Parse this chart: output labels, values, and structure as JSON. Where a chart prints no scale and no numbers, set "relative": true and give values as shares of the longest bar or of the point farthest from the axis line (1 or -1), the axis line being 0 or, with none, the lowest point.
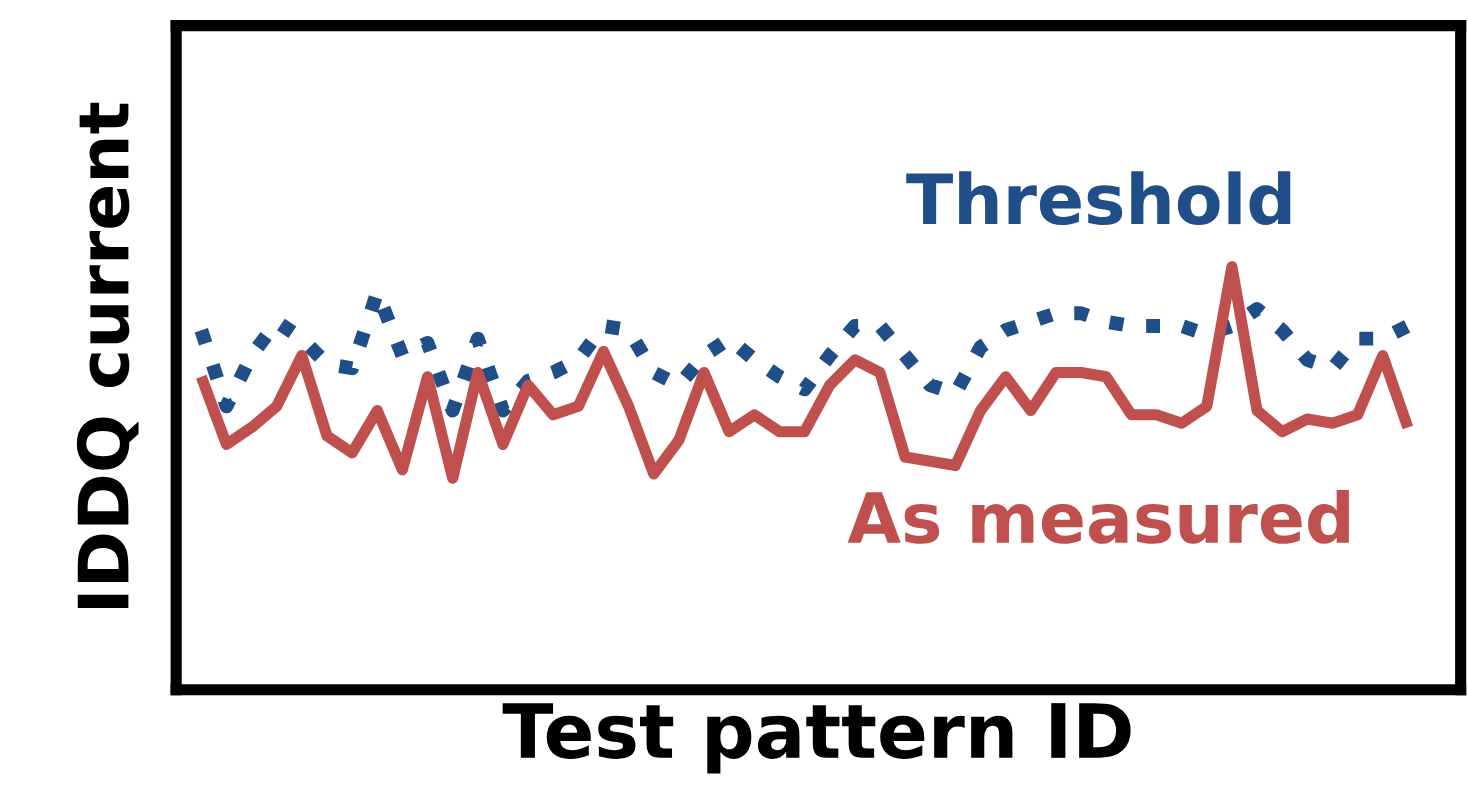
{
  "chart_data": {
    "type": "line",
    "relative": true,
    "xlabel": "Test pattern ID",
    "ylabel": "IDDQ current",
    "legend": false,
    "categories": [
      null,
      null,
      null,
      null,
      null,
      null,
      null,
      null,
      null,
      null,
      null,
      null,
      null,
      null,
      null,
      null,
      null,
      null,
      null,
      null,
      null,
      null,
      null,
      null,
      null,
      null,
      null,
      null,
      null,
      null,
      null,
      null,
      null,
      null,
      null,
      null,
      null,
      null,
      null,
      null,
      null,
      null,
      null,
      null,
      null,
      null,
      null,
      null,
      null
    ],
    "series": [
      {
        "name": "Threshold",
        "color": "#1f4e89",
        "line_style": "dotted",
        "values": [
          0.85,
          0.67,
          0.79,
          0.87,
          0.83,
          0.77,
          0.76,
          0.94,
          0.79,
          0.82,
          0.66,
          0.83,
          0.66,
          0.73,
          0.75,
          0.78,
          0.86,
          0.85,
          0.75,
          0.72,
          0.79,
          0.83,
          0.78,
          0.74,
          0.71,
          0.79,
          0.86,
          0.86,
          0.79,
          0.72,
          0.7,
          0.81,
          0.85,
          0.87,
          0.89,
          0.89,
          0.87,
          0.86,
          0.86,
          0.86,
          0.84,
          0.86,
          0.9,
          0.85,
          0.78,
          0.76,
          0.83,
          0.83,
          0.86
        ]
      },
      {
        "name": "As measured",
        "color": "#c0504d",
        "line_style": "solid",
        "values": [
          0.74,
          0.58,
          0.62,
          0.67,
          0.79,
          0.6,
          0.56,
          0.66,
          0.52,
          0.74,
          0.5,
          0.75,
          0.58,
          0.72,
          0.65,
          0.67,
          0.8,
          0.67,
          0.51,
          0.59,
          0.75,
          0.61,
          0.65,
          0.61,
          0.61,
          0.72,
          0.78,
          0.75,
          0.55,
          0.54,
          0.53,
          0.66,
          0.74,
          0.66,
          0.75,
          0.75,
          0.74,
          0.65,
          0.65,
          0.63,
          0.67,
          1.0,
          0.66,
          0.61,
          0.64,
          0.63,
          0.65,
          0.79,
          0.62
        ]
      }
    ]
  }
}
